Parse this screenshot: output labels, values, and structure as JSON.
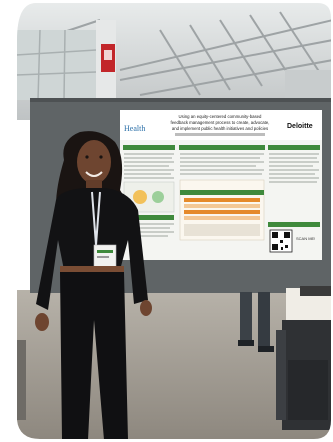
{
  "poster": {
    "logo_left": "Health",
    "logo_right": "Deloitte",
    "title_line1": "Using an equity-centered community-based",
    "title_line2": "feedback management process to create, advocate,",
    "title_line3": "and implement public health initiatives and policies",
    "qr_caption": "SCAN ME!"
  },
  "colors": {
    "poster_green": "#3f8a3c",
    "poster_orange": "#e58a2b",
    "board_gray": "#5f6466",
    "ceiling_gray": "#d9dcdc"
  }
}
